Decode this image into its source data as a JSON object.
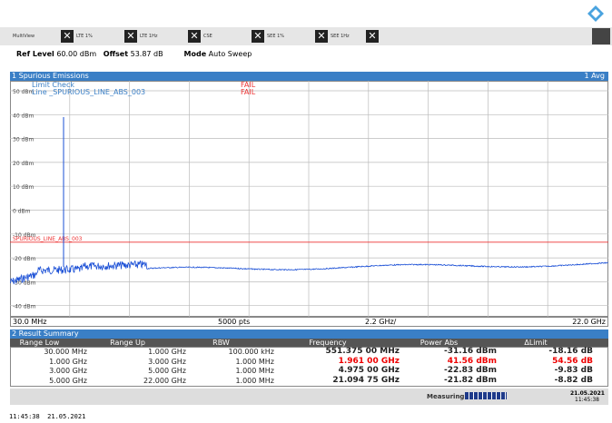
{
  "tabs": [
    "MultiView",
    "LTE 1%",
    "LTE 1Hz",
    "CSE",
    "SEE 1%",
    "SEE 1Hz"
  ],
  "settings": {
    "ref_label": "Ref Level",
    "ref_value": "60.00 dBm",
    "offset_label": "Offset",
    "offset_value": "53.87 dB",
    "mode_label": "Mode",
    "mode_value": "Auto Sweep"
  },
  "window": {
    "title": "1 Spurious Emissions",
    "trace": "1 Avg",
    "y_labels": [
      "50 dBm",
      "40 dBm",
      "30 dBm",
      "20 dBm",
      "10 dBm",
      "0 dBm",
      "-10 dBm",
      "-20 dBm",
      "-30 dBm",
      "-40 dBm"
    ],
    "limit_check": "Limit Check",
    "limit_check_result": "FAIL",
    "line_name": "Line _SPURIOUS_LINE_ABS_003",
    "line_result": "FAIL",
    "limit_line_label": "SPURIOUS_LINE_ABS_003",
    "start": "30.0 MHz",
    "points": "5000 pts",
    "span_per_div": "2.2 GHz/",
    "stop": "22.0 GHz"
  },
  "table": {
    "title": "2 Result Summary",
    "columns": [
      "Range Low",
      "Range Up",
      "RBW",
      "Frequency",
      "Power Abs",
      "ΔLimit"
    ],
    "rows": [
      [
        "30.000 MHz",
        "1.000 GHz",
        "100.000 kHz",
        "551.375 00 MHz",
        "-31.16 dBm",
        "-18.16 dB"
      ],
      [
        "1.000 GHz",
        "3.000 GHz",
        "1.000 MHz",
        "1.961 00 GHz",
        "41.56 dBm",
        "54.56 dB"
      ],
      [
        "3.000 GHz",
        "5.000 GHz",
        "1.000 MHz",
        "4.975 00 GHz",
        "-22.83 dBm",
        "-9.83 dB"
      ],
      [
        "5.000 GHz",
        "22.000 GHz",
        "1.000 MHz",
        "21.094 75 GHz",
        "-21.82 dBm",
        "-8.82 dB"
      ]
    ]
  },
  "status": {
    "state": "Measuring...",
    "date": "21.05.2021",
    "time": "11:45:38"
  },
  "timestamp": "11:45:38  21.05.2021"
}
